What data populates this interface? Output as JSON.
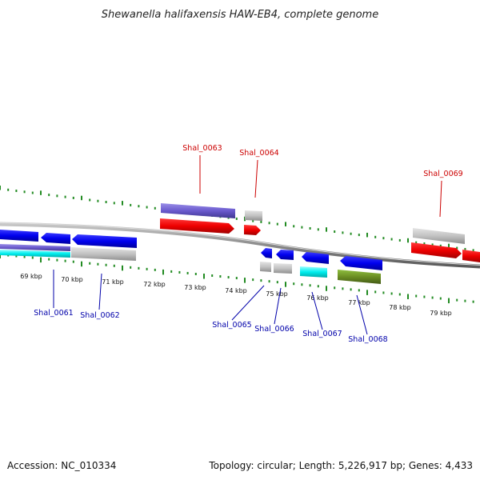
{
  "title": "Shewanella halifaxensis HAW-EB4, complete genome",
  "footer": {
    "accession": "Accession: NC_010334",
    "summary": "Topology: circular; Length: 5,226,917 bp; Genes: 4,433"
  },
  "colors": {
    "forward_label": "#cc0000",
    "reverse_label": "#0000aa",
    "tick": "#228B22",
    "backbone": "#888888"
  },
  "scale_labels": [
    "69 kbp",
    "70 kbp",
    "71 kbp",
    "72 kbp",
    "73 kbp",
    "74 kbp",
    "75 kbp",
    "76 kbp",
    "77 kbp",
    "78 kbp",
    "79 kbp"
  ],
  "gene_labels": {
    "forward": [
      "Shal_0063",
      "Shal_0064",
      "Shal_0069"
    ],
    "reverse": [
      "Shal_0061",
      "Shal_0062",
      "Shal_0065",
      "Shal_0066",
      "Shal_0067",
      "Shal_0068"
    ]
  }
}
